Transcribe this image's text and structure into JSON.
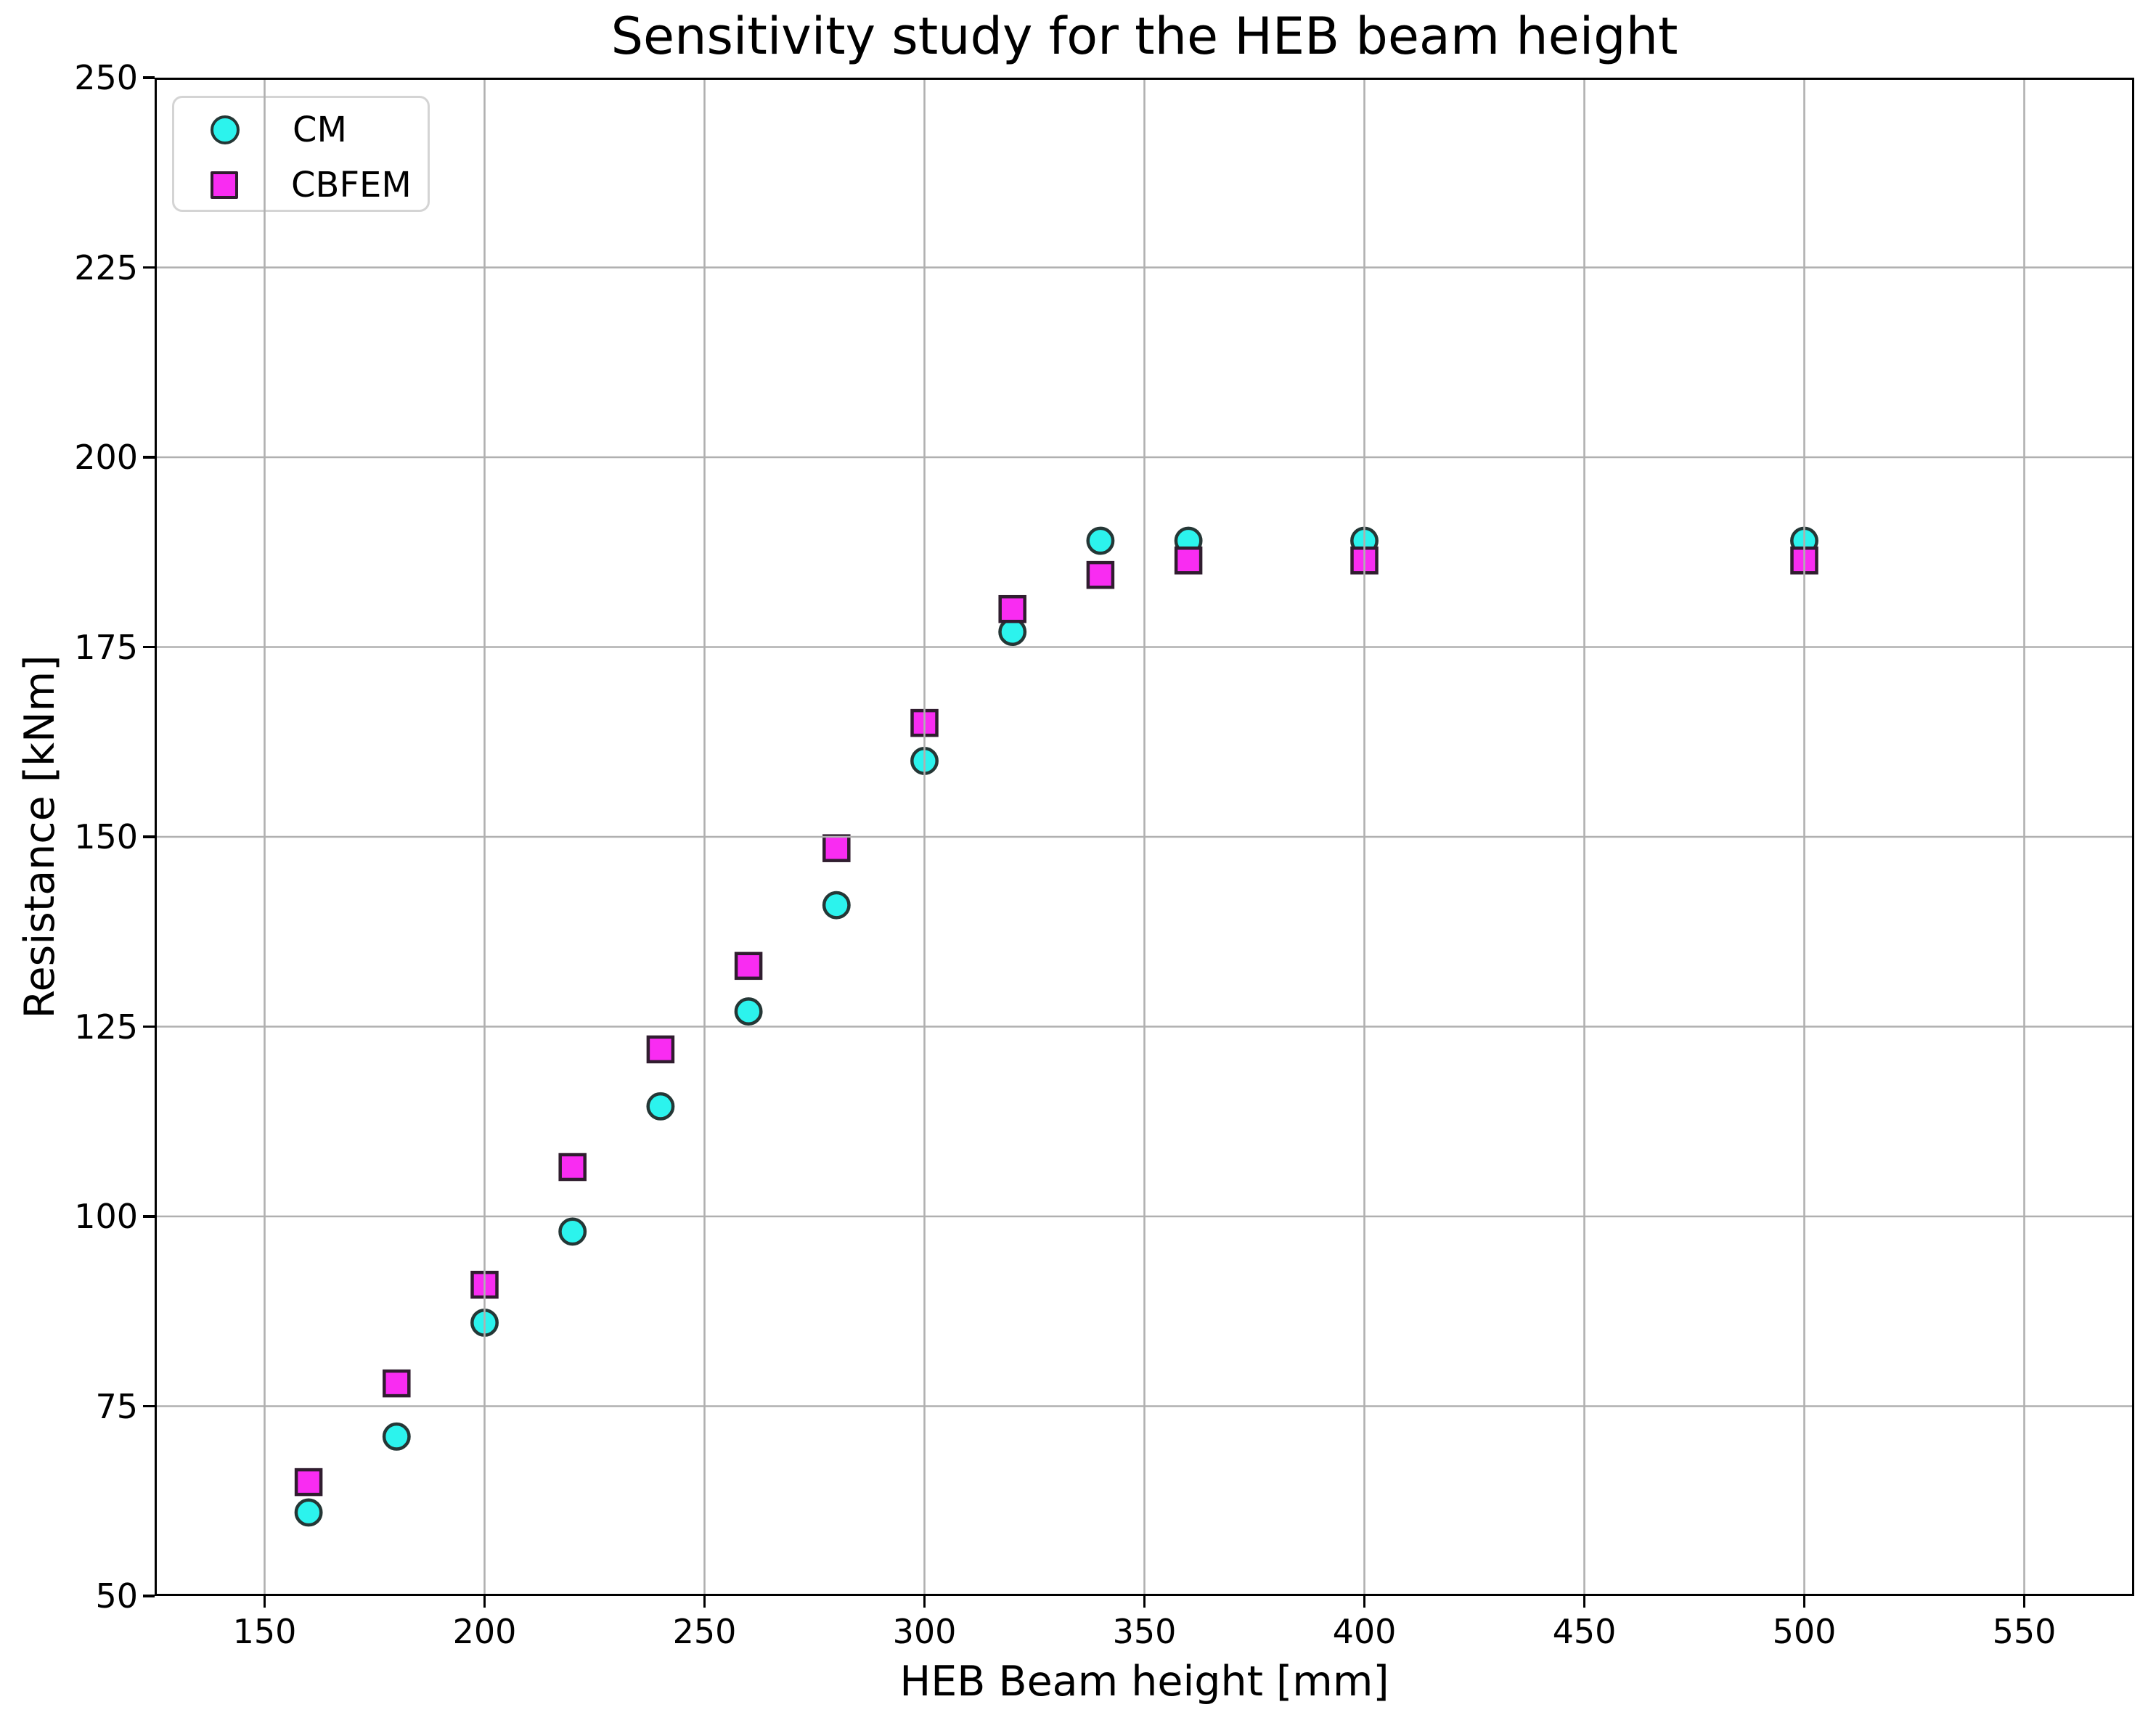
{
  "chart_data": {
    "type": "scatter",
    "title": "Sensitivity study for the HEB beam height",
    "xlabel": "HEB Beam height [mm]",
    "ylabel": "Resistance [kNm]",
    "xlim": [
      125,
      575
    ],
    "ylim": [
      50,
      250
    ],
    "xticks": [
      150,
      200,
      250,
      300,
      350,
      400,
      450,
      500,
      550
    ],
    "yticks": [
      50,
      75,
      100,
      125,
      150,
      175,
      200,
      225,
      250
    ],
    "grid": true,
    "grid_color": "#b0b0b0",
    "spine_color": "#000000",
    "legend_position": "upper left",
    "x": [
      160,
      180,
      200,
      220,
      240,
      260,
      280,
      300,
      320,
      340,
      360,
      400,
      500
    ],
    "series": [
      {
        "name": "CM",
        "marker": "circle",
        "fill": "#2cf3ed",
        "edge": "#253736",
        "values": [
          61,
          71,
          86,
          98,
          114.5,
          127,
          141,
          160,
          177,
          189,
          189,
          189,
          189
        ]
      },
      {
        "name": "CBFEM",
        "marker": "square",
        "fill": "#f92cf2",
        "edge": "#301d2f",
        "values": [
          65,
          78,
          91,
          106.5,
          122,
          133,
          148.5,
          165,
          180,
          184.5,
          186.4,
          186.4,
          186.4
        ]
      }
    ]
  }
}
